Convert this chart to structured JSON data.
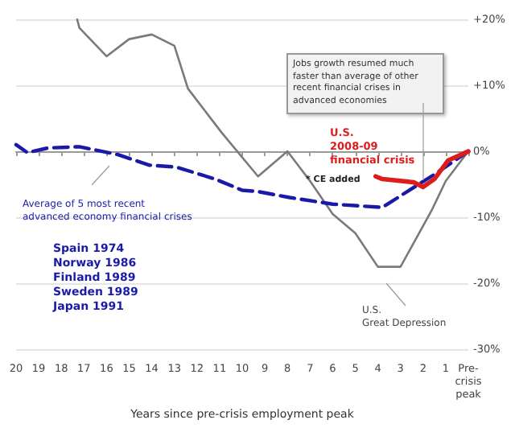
{
  "chart_data": {
    "type": "line",
    "xlabel": "Years since pre-crisis employment peak",
    "xlim": [
      20,
      0
    ],
    "xticks": [
      {
        "value": 0,
        "label": "Pre-\ncrisis\npeak"
      },
      1,
      2,
      3,
      4,
      5,
      6,
      7,
      8,
      9,
      10,
      11,
      12,
      13,
      14,
      15,
      16,
      17,
      18,
      19,
      20
    ],
    "ylim": [
      -30,
      20
    ],
    "yticks": [
      {
        "value": -30,
        "label": "-30%"
      },
      {
        "value": -20,
        "label": "-20%"
      },
      {
        "value": -10,
        "label": "-10%"
      },
      {
        "value": 0,
        "label": "0%"
      },
      {
        "value": 10,
        "label": "+10%"
      },
      {
        "value": 20,
        "label": "+20%"
      }
    ],
    "grid": "y",
    "marker": "none",
    "series": [
      {
        "color": "#7a7a7a",
        "line_style": "solid",
        "x": [
          0,
          1,
          1.6,
          3,
          4,
          5,
          6,
          7,
          8,
          9.3,
          10.9,
          12.4,
          13,
          14,
          15,
          16,
          17.2,
          17.3
        ],
        "values": [
          0,
          -4.5,
          -8.8,
          -17.5,
          -17.5,
          -12.4,
          -9.5,
          -4.5,
          0,
          -3.8,
          2.8,
          9.5,
          16,
          17.7,
          17,
          14.4,
          18.7,
          20
        ]
      },
      {
        "color": "#1a1aa8",
        "line_style": "dashed",
        "x": [
          0,
          1.5,
          2.2,
          3.8,
          6,
          7.9,
          9.3,
          10,
          11.2,
          12.9,
          14.1,
          15.5,
          17.2,
          18.6,
          19.5,
          20
        ],
        "values": [
          0,
          -3.5,
          -5,
          -8.5,
          -8,
          -7,
          -6.1,
          -5.9,
          -4.2,
          -2.4,
          -2.1,
          -0.5,
          0.7,
          0.5,
          -0.2,
          1
        ]
      },
      {
        "color": "#dd1c1c",
        "line_style": "solid",
        "x": [
          0,
          0.9,
          1.5,
          2,
          2.4,
          3.8,
          4.1
        ],
        "values": [
          0,
          -1.4,
          -4.2,
          -5.4,
          -4.7,
          -4.2,
          -3.8
        ]
      }
    ],
    "annotations": [
      "Jobs growth resumed much faster than average of other recent financial crises in advanced economies",
      "U.S.\n2008-09\nfinancial crisis",
      "* CE added",
      "U.S.\nGreat Depression",
      "Average of 5 most recent\nadvanced economy financial crises",
      "Spain 1974\nNorway 1986\nFinland 1989\nSweden 1989\nJapan 1991"
    ]
  }
}
